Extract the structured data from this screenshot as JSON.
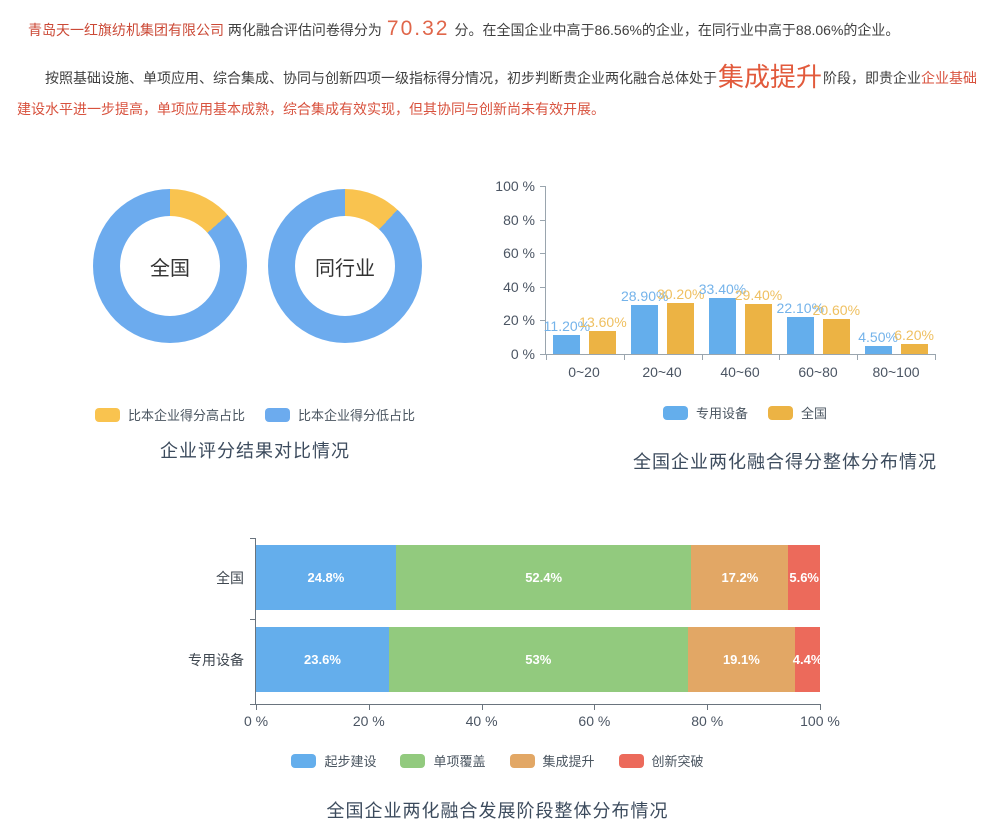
{
  "intro": {
    "company": "青岛天一红旗纺机集团有限公司",
    "score_prefix": "两化融合评估问卷得分为",
    "score": "70.32",
    "score_suffix": "分。在全国企业中高于86.56%的企业，在同行业中高于88.06%的企业。",
    "para_part1": "按照基础设施、单项应用、综合集成、协同与创新四项一级指标得分情况，初步判断贵企业两化融合总体处于",
    "stage": "集成提升",
    "para_part2": "阶段，即贵企业",
    "para_part3": "企业基础建设水平进一步提高，单项应用基本成熟，综合集成有效实现，但其协同与创新尚未有效开展。"
  },
  "colors": {
    "company_red": "#cb4936",
    "score_orange": "#e0664a",
    "stage_red": "#e25a3c",
    "paragraph_red": "#d8523e",
    "body_dark": "#3f3f3f",
    "title_slate": "#3c4b5d",
    "blue": "#64aeec",
    "donut_yellow": "#f9c34f",
    "bar_yellow": "#ecb344",
    "green": "#92ca7e",
    "orange": "#e2a765",
    "red": "#ec6a5b"
  },
  "chart_data": [
    {
      "type": "pie",
      "subtype": "donut-pair",
      "title": "企业评分结果对比情况",
      "donuts": [
        {
          "label": "全国",
          "slices": [
            {
              "name": "比本企业得分高占比",
              "value": 13.44,
              "color": "#f9c34f"
            },
            {
              "name": "比本企业得分低占比",
              "value": 86.56,
              "color": "#6cabee"
            }
          ]
        },
        {
          "label": "同行业",
          "slices": [
            {
              "name": "比本企业得分高占比",
              "value": 11.94,
              "color": "#f9c34f"
            },
            {
              "name": "比本企业得分低占比",
              "value": 88.06,
              "color": "#6cabee"
            }
          ]
        }
      ],
      "legend": [
        {
          "label": "比本企业得分高占比",
          "color": "#f9c34f"
        },
        {
          "label": "比本企业得分低占比",
          "color": "#6cabee"
        }
      ],
      "legend_position": "bottom"
    },
    {
      "type": "bar",
      "title": "全国企业两化融合得分整体分布情况",
      "categories": [
        "0~20",
        "20~40",
        "40~60",
        "60~80",
        "80~100"
      ],
      "series": [
        {
          "name": "专用设备",
          "color": "#64aeec",
          "label_color": "#74b3ea",
          "values": [
            11.2,
            28.9,
            33.4,
            22.1,
            4.5
          ],
          "labels": [
            "11.20%",
            "28.90%",
            "33.40%",
            "22.10%",
            "4.50%"
          ]
        },
        {
          "name": "全国",
          "color": "#ecb344",
          "label_color": "#efc061",
          "values": [
            13.6,
            30.2,
            29.4,
            20.6,
            6.2
          ],
          "labels": [
            "13.60%",
            "30.20%",
            "29.40%",
            "20.60%",
            "6.20%"
          ]
        }
      ],
      "y_ticks": [
        "100 %",
        "80 %",
        "60 %",
        "40 %",
        "20 %",
        "0 %"
      ],
      "ylim": [
        0,
        100
      ],
      "grid": false,
      "legend_position": "bottom"
    },
    {
      "type": "bar",
      "subtype": "horizontal-stacked",
      "title": "全国企业两化融合发展阶段整体分布情况",
      "categories": [
        "全国",
        "专用设备"
      ],
      "series": [
        {
          "name": "起步建设",
          "color": "#64aeec",
          "values": [
            24.8,
            23.6
          ],
          "labels": [
            "24.8%",
            "23.6%"
          ]
        },
        {
          "name": "单项覆盖",
          "color": "#92ca7e",
          "values": [
            52.4,
            53.0
          ],
          "labels": [
            "52.4%",
            "53%"
          ]
        },
        {
          "name": "集成提升",
          "color": "#e2a765",
          "values": [
            17.2,
            19.1
          ],
          "labels": [
            "17.2%",
            "19.1%"
          ]
        },
        {
          "name": "创新突破",
          "color": "#ec6a5b",
          "values": [
            5.6,
            4.4
          ],
          "labels": [
            "5.6%",
            "4.4%"
          ]
        }
      ],
      "x_ticks": [
        "0 %",
        "20 %",
        "40 %",
        "60 %",
        "80 %",
        "100 %"
      ],
      "xlim": [
        0,
        100
      ],
      "grid": false,
      "legend_position": "bottom"
    }
  ]
}
